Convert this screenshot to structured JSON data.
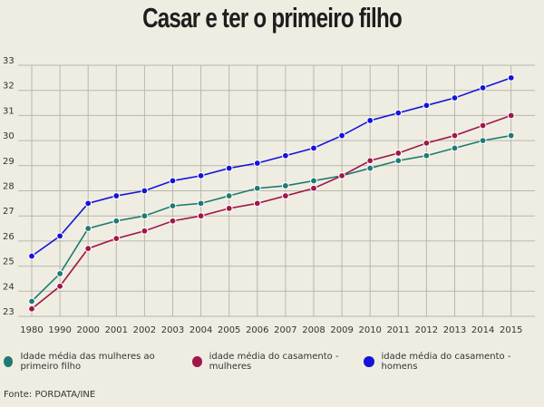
{
  "chart_data": {
    "type": "line",
    "title": "Casar e ter o primeiro filho",
    "categories": [
      "1980",
      "1990",
      "2000",
      "2001",
      "2002",
      "2003",
      "2004",
      "2005",
      "2006",
      "2007",
      "2008",
      "2009",
      "2010",
      "2011",
      "2012",
      "2013",
      "2014",
      "2015"
    ],
    "yticks": [
      "23",
      "24",
      "25",
      "26",
      "27",
      "28",
      "29",
      "30",
      "31",
      "32",
      "33"
    ],
    "ylim": [
      23,
      33
    ],
    "grid": true,
    "legend_position": "bottom",
    "series": [
      {
        "name": "Idade média das mulheres ao primeiro filho",
        "color": "#1f7a72",
        "values": [
          23.6,
          24.7,
          26.5,
          26.8,
          27.0,
          27.4,
          27.5,
          27.8,
          28.1,
          28.2,
          28.4,
          28.6,
          28.9,
          29.2,
          29.4,
          29.7,
          30.0,
          30.2
        ]
      },
      {
        "name": "idade média do casamento - mulheres",
        "color": "#a0174a",
        "values": [
          23.3,
          24.2,
          25.7,
          26.1,
          26.4,
          26.8,
          27.0,
          27.3,
          27.5,
          27.8,
          28.1,
          28.6,
          29.2,
          29.5,
          29.9,
          30.2,
          30.6,
          31.0
        ]
      },
      {
        "name": "idade média do casamento - homens",
        "color": "#1414d8",
        "values": [
          25.4,
          26.2,
          27.5,
          27.8,
          28.0,
          28.4,
          28.6,
          28.9,
          29.1,
          29.4,
          29.7,
          30.2,
          30.8,
          31.1,
          31.4,
          31.7,
          32.1,
          32.5
        ]
      }
    ]
  },
  "source": "Fonte: PORDATA/INE"
}
